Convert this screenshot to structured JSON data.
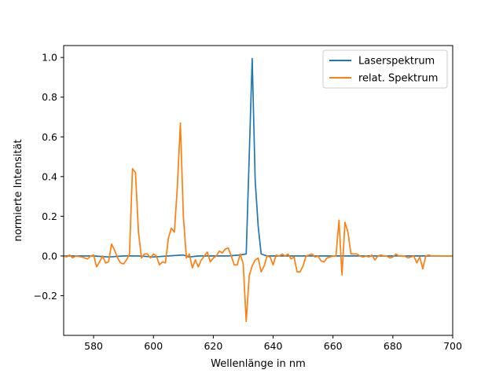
{
  "chart_data": {
    "type": "line",
    "title": "",
    "xlabel": "Wellenlänge in nm",
    "ylabel": "normierte Intensität",
    "xlim": [
      570,
      700
    ],
    "ylim": [
      -0.4,
      1.06
    ],
    "xticks": [
      580,
      600,
      620,
      640,
      660,
      680,
      700
    ],
    "yticks": [
      -0.2,
      0.0,
      0.2,
      0.4,
      0.6,
      0.8,
      1.0
    ],
    "xtick_labels": [
      "580",
      "600",
      "620",
      "640",
      "660",
      "680",
      "700"
    ],
    "ytick_labels": [
      "−0.2",
      "0.0",
      "0.2",
      "0.4",
      "0.6",
      "0.8",
      "1.0"
    ],
    "grid": false,
    "legend_position": "top-right",
    "series": [
      {
        "name": "Laserspektrum",
        "color": "#1f77b4",
        "x": [
          570,
          575,
          580,
          585,
          590,
          595,
          600,
          605,
          610,
          612,
          615,
          620,
          625,
          629,
          631,
          632,
          633,
          634,
          635,
          636,
          638,
          640,
          645,
          650,
          660,
          670,
          680,
          690,
          700
        ],
        "y": [
          0.0,
          0.0,
          0.0,
          -0.005,
          0.0,
          0.0,
          -0.005,
          0.0,
          0.005,
          -0.005,
          0.0,
          0.0,
          0.0,
          0.005,
          0.01,
          0.5,
          0.995,
          0.38,
          0.15,
          0.01,
          0.0,
          0.0,
          0.0,
          0.0,
          0.0,
          0.0,
          0.0,
          0.0,
          0.0
        ]
      },
      {
        "name": "relat. Spektrum",
        "color": "#ff7f0e",
        "x": [
          570,
          571,
          572,
          573,
          574,
          576,
          578,
          579,
          580,
          581,
          582,
          583,
          584,
          585,
          586,
          587,
          588,
          589,
          590,
          591,
          592,
          593,
          594,
          595,
          596,
          597,
          598,
          599,
          600,
          601,
          602,
          603,
          604,
          605,
          606,
          607,
          608,
          609,
          610,
          611,
          612,
          613,
          614,
          615,
          616,
          617,
          618,
          619,
          620,
          621,
          622,
          623,
          624,
          625,
          626,
          627,
          628,
          629,
          630,
          631,
          632,
          633,
          634,
          635,
          636,
          637,
          638,
          639,
          640,
          641,
          642,
          643,
          644,
          645,
          646,
          647,
          648,
          649,
          650,
          651,
          652,
          653,
          654,
          655,
          656,
          657,
          658,
          659,
          660,
          661,
          662,
          663,
          664,
          665,
          666,
          667,
          668,
          669,
          670,
          671,
          672,
          673,
          674,
          675,
          676,
          677,
          678,
          679,
          680,
          681,
          682,
          683,
          684,
          685,
          686,
          687,
          688,
          689,
          690,
          691,
          692,
          693,
          694,
          695,
          696,
          697,
          698,
          699,
          700
        ],
        "y": [
          0.0,
          -0.005,
          0.005,
          -0.01,
          0.0,
          -0.005,
          -0.015,
          0.0,
          0.005,
          -0.055,
          -0.03,
          0.0,
          -0.035,
          -0.03,
          0.06,
          0.03,
          -0.01,
          -0.035,
          -0.04,
          -0.02,
          0.01,
          0.44,
          0.42,
          0.12,
          -0.01,
          0.01,
          0.01,
          -0.01,
          0.01,
          0.0,
          -0.045,
          -0.03,
          -0.035,
          0.09,
          0.14,
          0.12,
          0.35,
          0.67,
          0.2,
          -0.01,
          0.01,
          -0.06,
          -0.02,
          -0.055,
          -0.02,
          0.0,
          0.02,
          -0.03,
          -0.01,
          0.0,
          0.025,
          0.015,
          0.035,
          0.04,
          0.0,
          -0.045,
          -0.045,
          0.01,
          -0.04,
          -0.33,
          -0.1,
          -0.05,
          -0.02,
          -0.01,
          -0.08,
          -0.05,
          0.0,
          -0.005,
          -0.045,
          0.005,
          0.0,
          0.01,
          0.0,
          0.01,
          -0.015,
          -0.005,
          -0.08,
          -0.08,
          -0.05,
          0.0,
          0.005,
          0.01,
          -0.005,
          0.0,
          -0.025,
          -0.03,
          -0.01,
          -0.005,
          0.0,
          0.0,
          0.18,
          -0.095,
          0.17,
          0.12,
          0.01,
          0.01,
          0.01,
          0.0,
          -0.005,
          0.0,
          -0.005,
          0.005,
          -0.02,
          0.0,
          0.005,
          0.0,
          0.0,
          -0.01,
          -0.005,
          0.01,
          0.0,
          0.0,
          0.0,
          -0.01,
          -0.005,
          0.0,
          -0.035,
          -0.005,
          -0.065,
          0.0,
          0.005,
          0.0,
          0.0,
          0.0,
          0.0,
          0.0,
          0.0,
          0.0,
          0.0
        ]
      }
    ]
  }
}
